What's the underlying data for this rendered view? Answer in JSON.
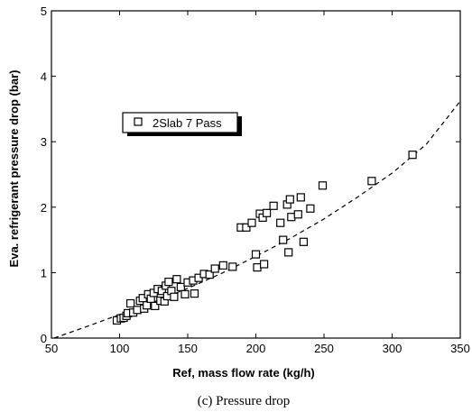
{
  "chart_data": {
    "type": "scatter",
    "xlabel": "Ref, mass flow rate (kg/h)",
    "ylabel": "Eva.  refrigerant pressure drop (bar)",
    "xlim": [
      50,
      350
    ],
    "ylim": [
      0,
      5
    ],
    "xticks": [
      "50",
      "100",
      "150",
      "200",
      "250",
      "300",
      "350"
    ],
    "yticks": [
      "0",
      "1",
      "2",
      "3",
      "4",
      "5"
    ],
    "grid": false,
    "legend_position": "upper-left",
    "series": [
      {
        "name": "2Slab 7 Pass",
        "marker": "open-square",
        "points": [
          [
            98,
            0.27
          ],
          [
            101,
            0.3
          ],
          [
            103,
            0.31
          ],
          [
            105,
            0.34
          ],
          [
            106,
            0.38
          ],
          [
            108,
            0.53
          ],
          [
            110,
            0.39
          ],
          [
            113,
            0.43
          ],
          [
            115,
            0.57
          ],
          [
            117,
            0.61
          ],
          [
            118,
            0.45
          ],
          [
            120,
            0.5
          ],
          [
            121,
            0.67
          ],
          [
            123,
            0.6
          ],
          [
            125,
            0.69
          ],
          [
            126,
            0.49
          ],
          [
            128,
            0.75
          ],
          [
            130,
            0.57
          ],
          [
            131,
            0.72
          ],
          [
            133,
            0.56
          ],
          [
            134,
            0.8
          ],
          [
            135,
            0.64
          ],
          [
            136,
            0.86
          ],
          [
            138,
            0.72
          ],
          [
            140,
            0.63
          ],
          [
            142,
            0.9
          ],
          [
            145,
            0.78
          ],
          [
            148,
            0.67
          ],
          [
            150,
            0.85
          ],
          [
            154,
            0.88
          ],
          [
            155,
            0.68
          ],
          [
            158,
            0.92
          ],
          [
            162,
            0.98
          ],
          [
            166,
            0.97
          ],
          [
            170,
            1.06
          ],
          [
            176,
            1.11
          ],
          [
            183,
            1.09
          ],
          [
            189,
            1.69
          ],
          [
            193,
            1.69
          ],
          [
            197,
            1.76
          ],
          [
            200,
            1.28
          ],
          [
            201,
            1.08
          ],
          [
            203,
            1.9
          ],
          [
            205,
            1.84
          ],
          [
            206,
            1.13
          ],
          [
            208,
            1.91
          ],
          [
            213,
            2.02
          ],
          [
            218,
            1.76
          ],
          [
            220,
            1.5
          ],
          [
            223,
            2.04
          ],
          [
            224,
            1.31
          ],
          [
            225,
            2.12
          ],
          [
            226,
            1.85
          ],
          [
            231,
            1.89
          ],
          [
            233,
            2.15
          ],
          [
            235,
            1.47
          ],
          [
            240,
            1.98
          ],
          [
            249,
            2.33
          ],
          [
            285,
            2.4
          ],
          [
            315,
            2.8
          ]
        ]
      }
    ],
    "fit_curve": {
      "style": "dashed",
      "x": [
        52,
        75,
        100,
        125,
        150,
        175,
        200,
        225,
        250,
        275,
        300,
        325,
        350
      ],
      "y": [
        0.0,
        0.17,
        0.36,
        0.55,
        0.76,
        0.99,
        1.25,
        1.52,
        1.82,
        2.16,
        2.52,
        2.96,
        3.62
      ]
    },
    "caption": "(c) Pressure drop"
  }
}
